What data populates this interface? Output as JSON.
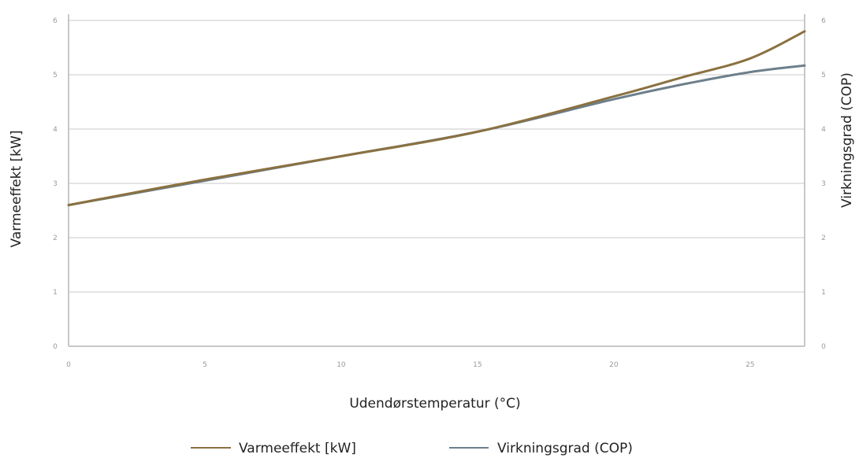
{
  "chart_data": {
    "type": "line",
    "xlabel": "Udendørstemperatur (°C)",
    "ylabel_left": "Varmeeffekt  [kW]",
    "ylabel_right": "Virkningsgrad  (COP)",
    "xlim": [
      0,
      27
    ],
    "ylim_left": [
      0,
      6
    ],
    "ylim_right": [
      0,
      6
    ],
    "x_ticks": [
      "0",
      "5",
      "10",
      "15",
      "20",
      "25"
    ],
    "y_ticks_left": [
      "0",
      "1",
      "2",
      "3",
      "4",
      "5",
      "6"
    ],
    "y_ticks_right": [
      "0",
      "1",
      "2",
      "3",
      "4",
      "5",
      "6"
    ],
    "grid": "horizontal",
    "legend_placement": "bottom",
    "series": [
      {
        "name": "Varmeeffekt [kW]",
        "axis": "left",
        "color": "#8a7140",
        "x": [
          0,
          5,
          10,
          15,
          20,
          22.5,
          25,
          27
        ],
        "y": [
          2.6,
          3.07,
          3.5,
          3.95,
          4.6,
          4.95,
          5.3,
          5.8
        ]
      },
      {
        "name": "Virkningsgrad (COP)",
        "axis": "right",
        "color": "#6d7f8c",
        "x": [
          0,
          5,
          10,
          15,
          20,
          22.5,
          25,
          27
        ],
        "y": [
          2.6,
          3.05,
          3.5,
          3.95,
          4.55,
          4.82,
          5.05,
          5.17
        ]
      }
    ]
  }
}
